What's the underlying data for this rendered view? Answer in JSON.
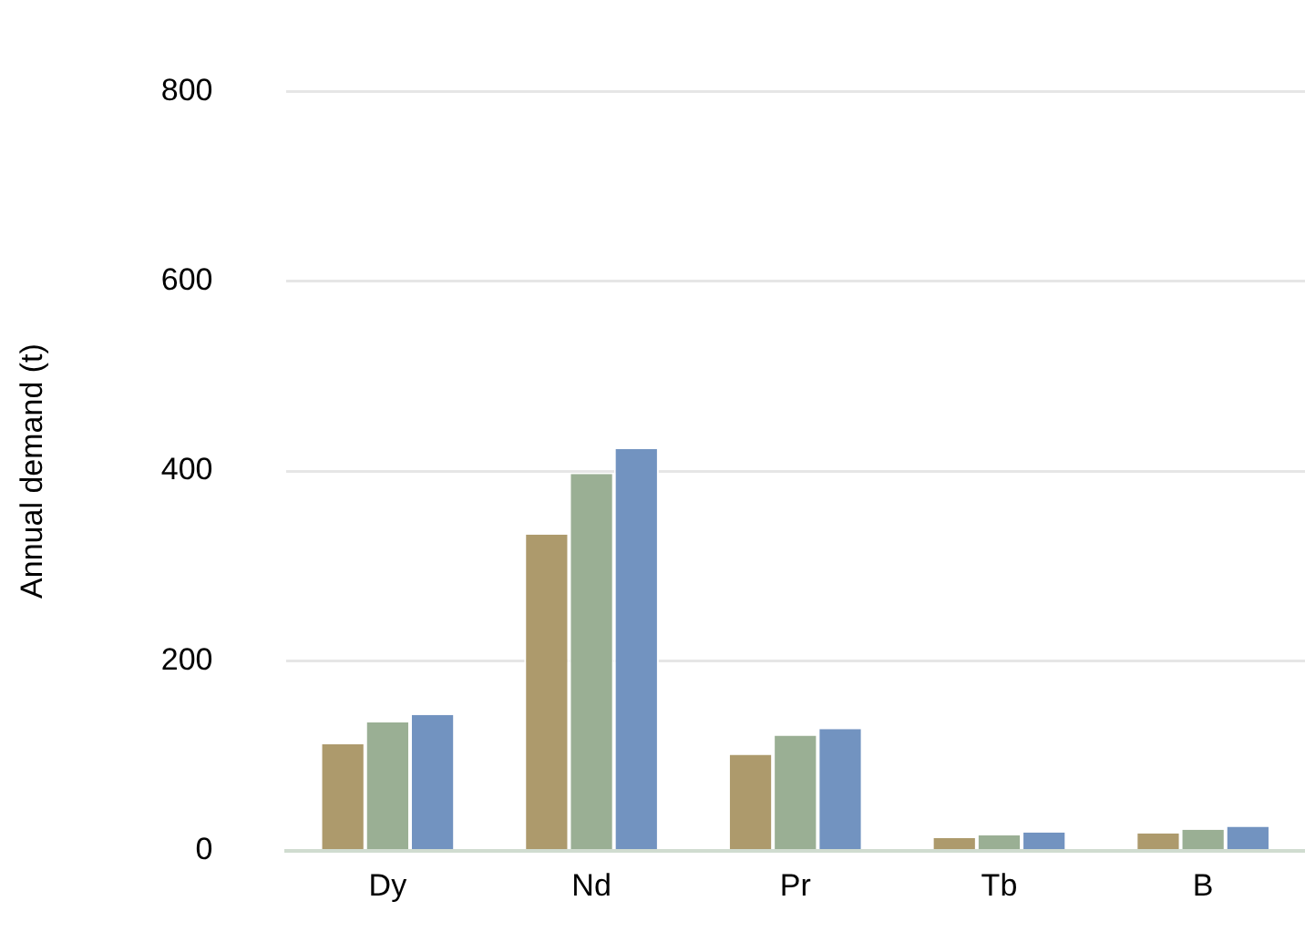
{
  "chart_data": {
    "type": "bar",
    "ylabel": "Annual demand (t)",
    "categories": [
      "Dy",
      "Nd",
      "Pr",
      "Tb",
      "B"
    ],
    "series": [
      {
        "color": "#ad9a6c",
        "values": [
          112,
          333,
          101,
          13,
          18
        ]
      },
      {
        "color": "#9aaf94",
        "values": [
          135,
          397,
          121,
          16,
          22
        ]
      },
      {
        "color": "#7293c0",
        "values": [
          143,
          423,
          128,
          19,
          25
        ]
      }
    ],
    "ylim": [
      0,
      800
    ],
    "yticks": [
      0,
      200,
      400,
      600,
      800
    ],
    "grid": "y",
    "legend": false
  }
}
